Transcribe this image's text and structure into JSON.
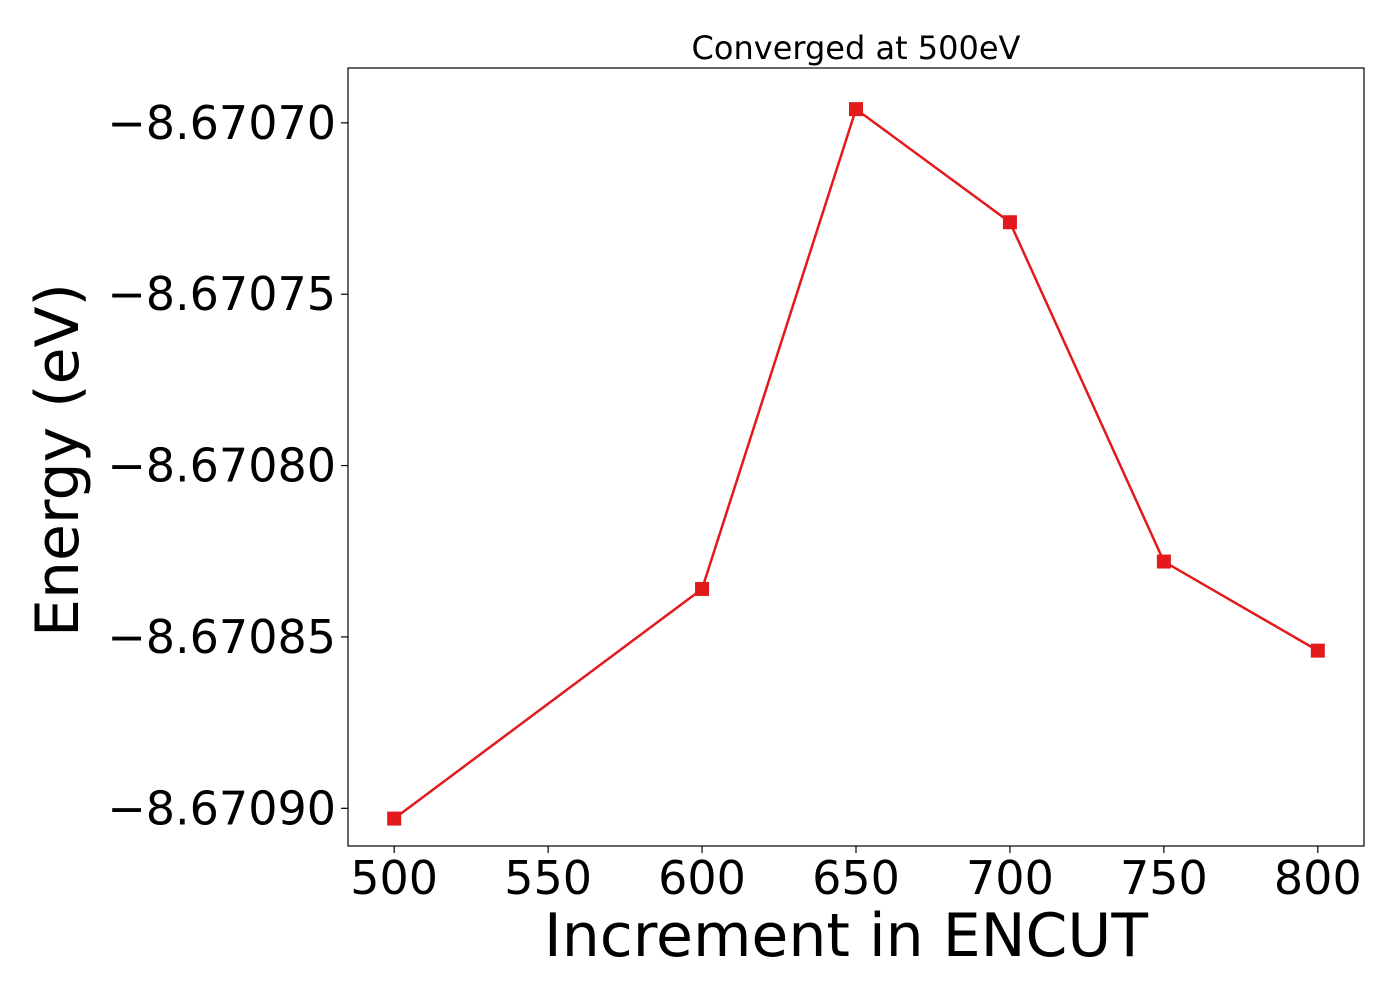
{
  "chart_data": {
    "type": "line",
    "title": "Converged at 500eV",
    "xlabel": "Increment in ENCUT",
    "ylabel": "Energy (eV)",
    "x": [
      500,
      600,
      650,
      700,
      750,
      800
    ],
    "series": [
      {
        "values": [
          -8.670903,
          -8.670836,
          -8.670696,
          -8.670729,
          -8.670828,
          -8.670854
        ],
        "color": "#e31a1c",
        "marker": "square"
      }
    ],
    "xticks": [
      500,
      550,
      600,
      650,
      700,
      750,
      800
    ],
    "xtick_labels": [
      "500",
      "550",
      "600",
      "650",
      "700",
      "750",
      "800"
    ],
    "yticks": [
      -8.6707,
      -8.67075,
      -8.6708,
      -8.67085,
      -8.6709
    ],
    "ytick_labels": [
      "−8.67070",
      "−8.67075",
      "−8.67080",
      "−8.67085",
      "−8.67090"
    ],
    "xlim": [
      485,
      815
    ],
    "ylim": [
      -8.670911,
      -8.670684
    ],
    "grid": false,
    "legend": "none"
  }
}
